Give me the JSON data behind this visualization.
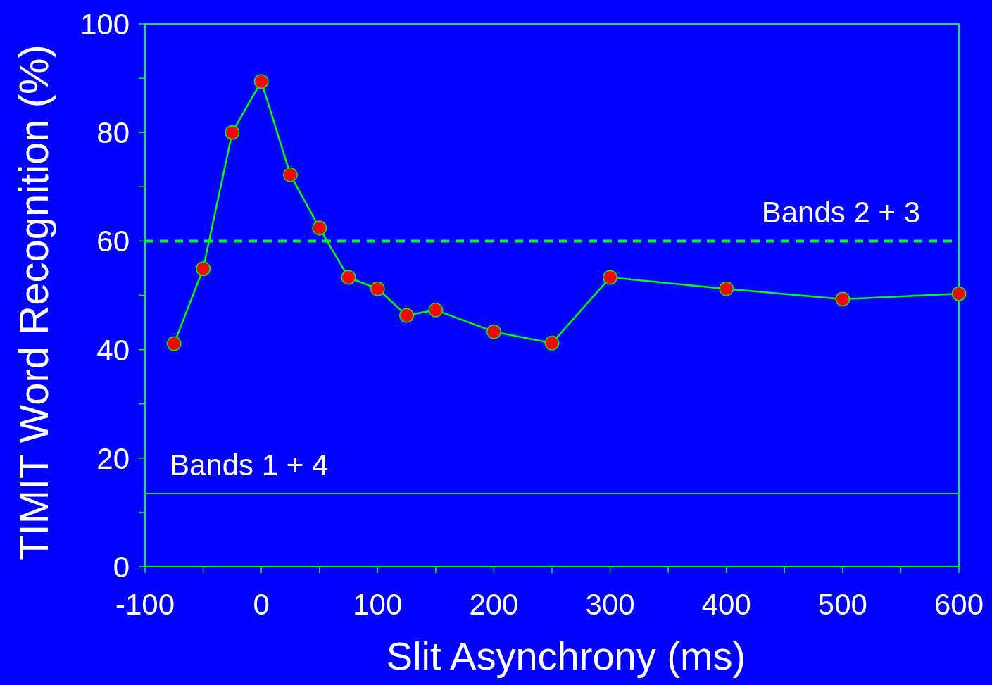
{
  "chart_data": {
    "type": "line",
    "xlabel": "Slit Asynchrony (ms)",
    "ylabel": "TIMIT Word Recognition (%)",
    "x": [
      -75,
      -50,
      -25,
      0,
      25,
      50,
      75,
      100,
      125,
      150,
      200,
      250,
      300,
      400,
      500,
      600
    ],
    "series": [
      {
        "color": "#00ff00",
        "values": [
          41.1,
          54.9,
          80.0,
          89.4,
          72.2,
          62.4,
          53.3,
          51.2,
          46.3,
          47.3,
          43.3,
          41.2,
          53.3,
          51.2,
          49.3,
          50.3
        ]
      }
    ],
    "marker": "circle",
    "line_style": "solid",
    "grid": false,
    "xlim": [
      -100,
      600
    ],
    "ylim": [
      0,
      100
    ],
    "xticks": [
      -100,
      {
        "value": -50,
        "label": null
      },
      0,
      {
        "value": 50,
        "label": null
      },
      100,
      {
        "value": 150,
        "label": null
      },
      200,
      {
        "value": 250,
        "label": null
      },
      300,
      {
        "value": 350,
        "label": null
      },
      400,
      {
        "value": 450,
        "label": null
      },
      500,
      {
        "value": 550,
        "label": null
      },
      600
    ],
    "yticks": [
      0,
      {
        "value": 10,
        "label": null
      },
      20,
      {
        "value": 30,
        "label": null
      },
      40,
      {
        "value": 50,
        "label": null
      },
      60,
      {
        "value": 70,
        "label": null
      },
      80,
      {
        "value": 90,
        "label": null
      },
      100
    ],
    "ref_lines": [
      {
        "axis": "y",
        "value": 60,
        "label": "Bands 2 + 3",
        "color": "#00ff00",
        "line_style": "dashed"
      },
      {
        "axis": "y",
        "value": 13.5,
        "label": "Bands 1 + 4",
        "color": "#00ff00",
        "line_style": "solid"
      }
    ]
  }
}
